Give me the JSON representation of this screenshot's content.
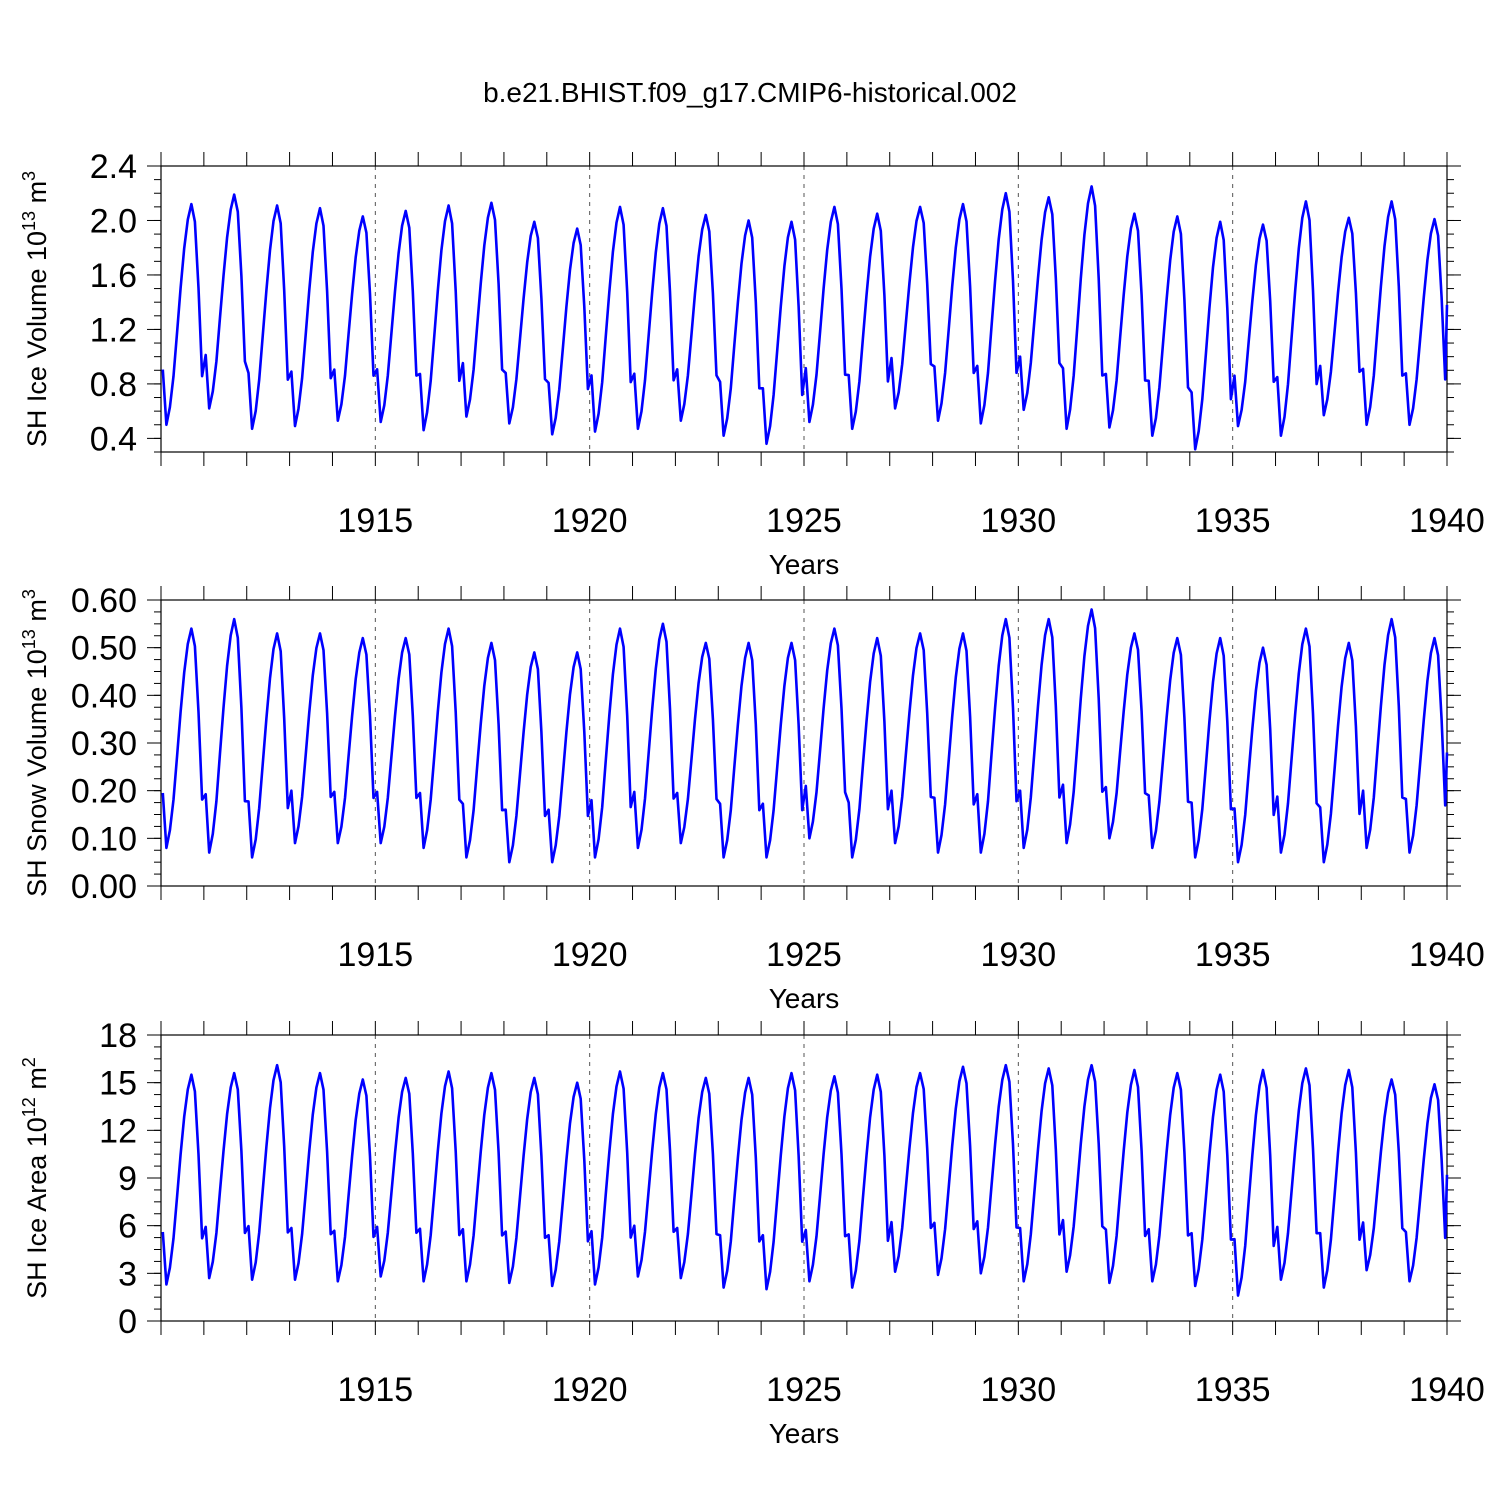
{
  "title": "b.e21.BHIST.f09_g17.CMIP6-historical.002",
  "colors": {
    "line": "#0000ff",
    "axis": "#000000",
    "refline": "#555555",
    "background": "#ffffff"
  },
  "chart_data": [
    {
      "type": "line",
      "series_name": "SH Ice Volume",
      "ylabel_text": "SH Ice Volume 10",
      "ylabel_exp": "13",
      "ylabel_unit": " m",
      "ylabel_unit_exp": "3",
      "xlabel": "Years",
      "xlim": [
        1910.0,
        1940.0
      ],
      "xticks": [
        1915,
        1920,
        1925,
        1930,
        1935,
        1940
      ],
      "ylim": [
        0.3,
        2.4
      ],
      "yticks": [
        0.4,
        0.8,
        1.2,
        1.6,
        2.0,
        2.4
      ],
      "ytick_labels": [
        "0.4",
        "0.8",
        "1.2",
        "1.6",
        "2.0",
        "2.4"
      ],
      "dashed_refs": [
        1915,
        1920,
        1925,
        1930,
        1935
      ],
      "annual_max": [
        2.12,
        2.19,
        2.11,
        2.09,
        2.03,
        2.07,
        2.11,
        2.13,
        1.99,
        1.94,
        2.1,
        2.09,
        2.04,
        2.0,
        1.99,
        2.1,
        2.05,
        2.1,
        2.12,
        2.2,
        2.17,
        2.25,
        2.05,
        2.03,
        1.99,
        1.97,
        2.14,
        2.02,
        2.14,
        2.01
      ],
      "annual_min": [
        0.5,
        0.62,
        0.47,
        0.49,
        0.53,
        0.52,
        0.46,
        0.56,
        0.51,
        0.43,
        0.45,
        0.47,
        0.53,
        0.42,
        0.36,
        0.52,
        0.47,
        0.62,
        0.53,
        0.51,
        0.61,
        0.47,
        0.48,
        0.42,
        0.32,
        0.49,
        0.42,
        0.57,
        0.5,
        0.5
      ],
      "end_value": 1.38
    },
    {
      "type": "line",
      "series_name": "SH Snow Volume",
      "ylabel_text": "SH Snow Volume 10",
      "ylabel_exp": "13",
      "ylabel_unit": " m",
      "ylabel_unit_exp": "3",
      "xlabel": "Years",
      "xlim": [
        1910.0,
        1940.0
      ],
      "xticks": [
        1915,
        1920,
        1925,
        1930,
        1935,
        1940
      ],
      "ylim": [
        0.0,
        0.6
      ],
      "yticks": [
        0.0,
        0.1,
        0.2,
        0.3,
        0.4,
        0.5,
        0.6
      ],
      "ytick_labels": [
        "0.00",
        "0.10",
        "0.20",
        "0.30",
        "0.40",
        "0.50",
        "0.60"
      ],
      "dashed_refs": [
        1915,
        1920,
        1925,
        1930,
        1935
      ],
      "annual_max": [
        0.54,
        0.56,
        0.53,
        0.53,
        0.52,
        0.52,
        0.54,
        0.51,
        0.49,
        0.49,
        0.54,
        0.55,
        0.51,
        0.51,
        0.51,
        0.54,
        0.52,
        0.53,
        0.53,
        0.56,
        0.56,
        0.58,
        0.53,
        0.52,
        0.52,
        0.5,
        0.54,
        0.51,
        0.56,
        0.52
      ],
      "annual_min": [
        0.08,
        0.07,
        0.06,
        0.09,
        0.09,
        0.09,
        0.08,
        0.06,
        0.05,
        0.05,
        0.06,
        0.08,
        0.09,
        0.06,
        0.06,
        0.1,
        0.06,
        0.09,
        0.07,
        0.07,
        0.08,
        0.09,
        0.1,
        0.08,
        0.06,
        0.05,
        0.07,
        0.05,
        0.08,
        0.07
      ],
      "end_value": 0.28
    },
    {
      "type": "line",
      "series_name": "SH Ice Area",
      "ylabel_text": "SH Ice Area 10",
      "ylabel_exp": "12",
      "ylabel_unit": " m",
      "ylabel_unit_exp": "2",
      "xlabel": "Years",
      "xlim": [
        1910.0,
        1940.0
      ],
      "xticks": [
        1915,
        1920,
        1925,
        1930,
        1935,
        1940
      ],
      "ylim": [
        0,
        18
      ],
      "yticks": [
        0,
        3,
        6,
        9,
        12,
        15,
        18
      ],
      "ytick_labels": [
        "0",
        "3",
        "6",
        "9",
        "12",
        "15",
        "18"
      ],
      "dashed_refs": [
        1915,
        1920,
        1925,
        1930,
        1935
      ],
      "annual_max": [
        15.5,
        15.6,
        16.1,
        15.6,
        15.2,
        15.3,
        15.7,
        15.6,
        15.3,
        15.0,
        15.7,
        15.6,
        15.3,
        15.3,
        15.6,
        15.4,
        15.5,
        15.6,
        16.0,
        16.1,
        15.9,
        16.1,
        15.8,
        15.6,
        15.5,
        15.8,
        15.9,
        15.8,
        15.2,
        14.9
      ],
      "annual_min": [
        2.3,
        2.7,
        2.6,
        2.6,
        2.5,
        2.8,
        2.5,
        2.5,
        2.4,
        2.2,
        2.3,
        2.8,
        2.7,
        2.1,
        2.0,
        2.5,
        2.1,
        3.1,
        2.9,
        3.0,
        2.5,
        3.1,
        2.4,
        2.5,
        2.2,
        1.6,
        2.6,
        2.1,
        3.2,
        2.5
      ],
      "end_value": 9.2
    }
  ]
}
